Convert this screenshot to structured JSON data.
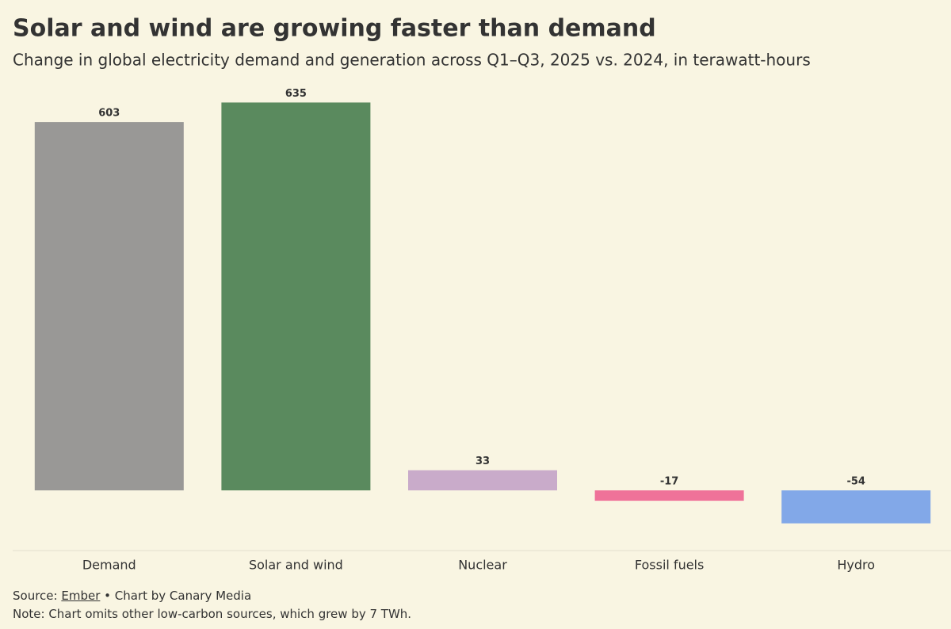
{
  "chart_data": {
    "type": "bar",
    "title": "Solar and wind are growing faster than demand",
    "subtitle": "Change in global electricity demand and generation across Q1–Q3, 2025 vs. 2024, in terawatt-hours",
    "categories": [
      "Demand",
      "Solar and wind",
      "Nuclear",
      "Fossil fuels",
      "Hydro"
    ],
    "values": [
      603,
      635,
      33,
      -17,
      -54
    ],
    "colors": [
      "#999896",
      "#5a8a5e",
      "#c9abca",
      "#ef7299",
      "#82a8e8"
    ],
    "source_label": "Source:",
    "source_link": "Ember",
    "source_rest": "• Chart by Canary Media",
    "note": "Note: Chart omits other low-carbon sources, which grew by 7 TWh."
  }
}
